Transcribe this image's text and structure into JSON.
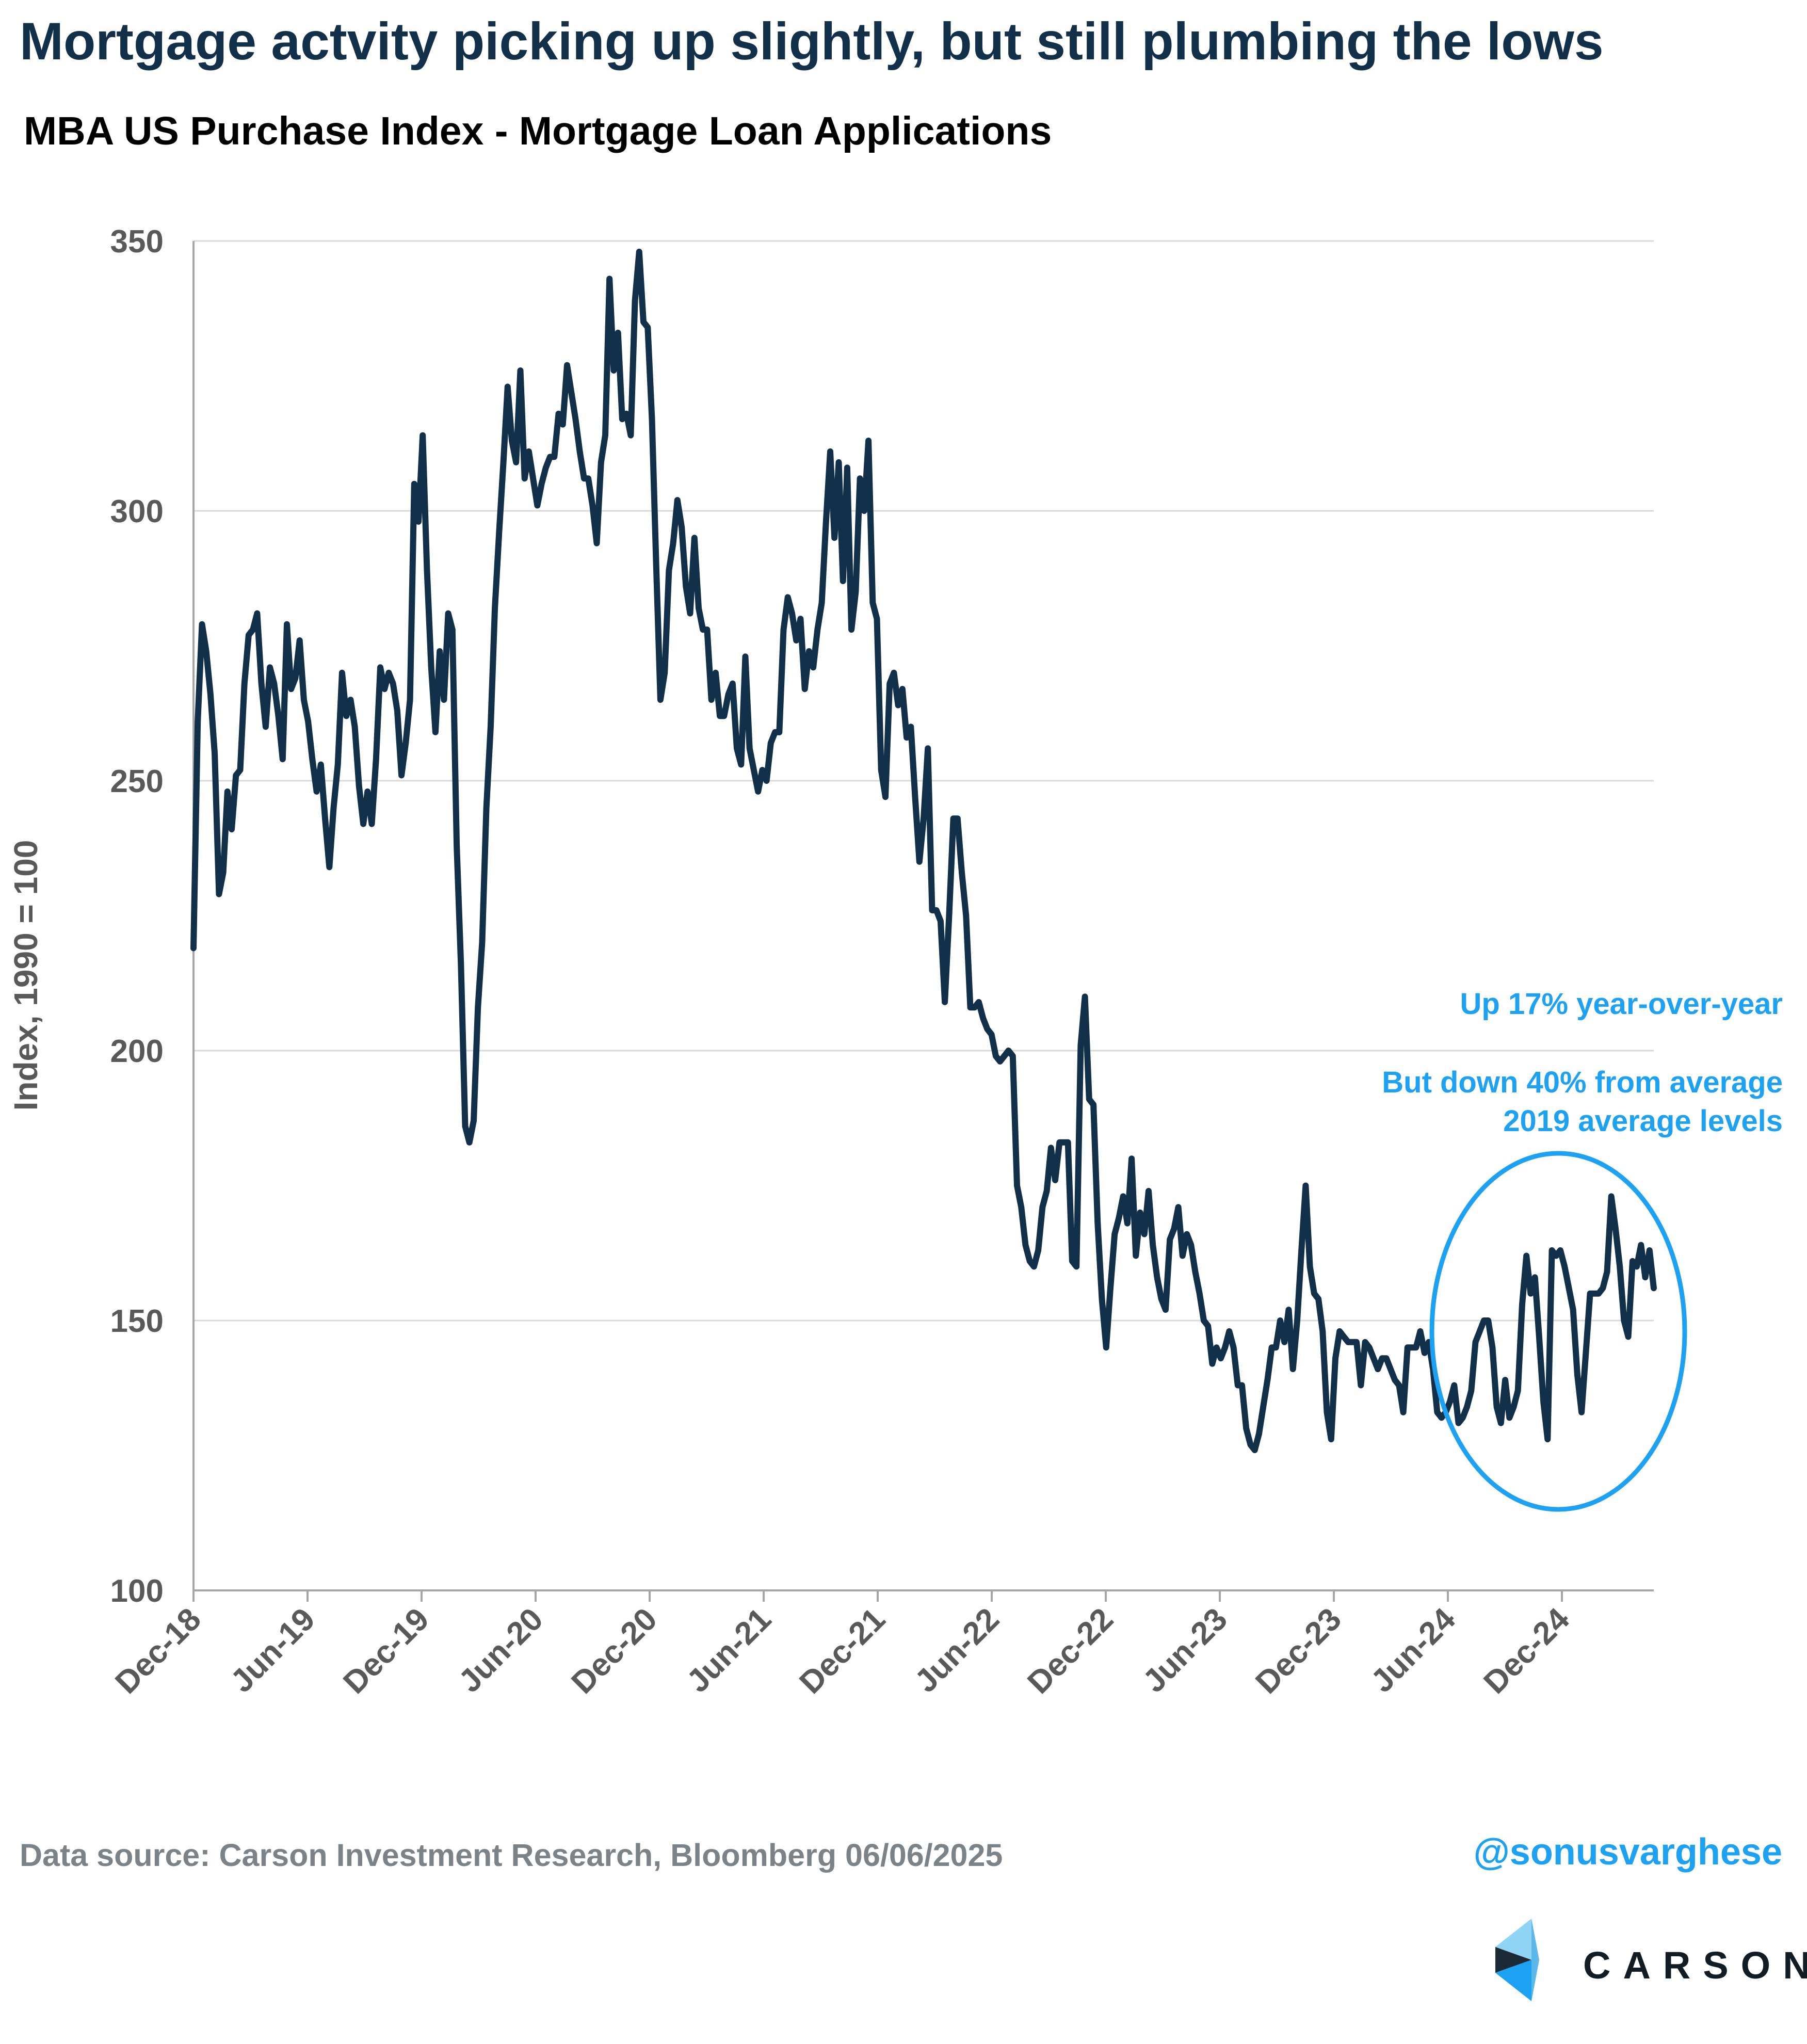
{
  "header": {
    "title": "Mortgage actvity picking up slightly, but still plumbing the lows",
    "subtitle": "MBA US Purchase Index - Mortgage Loan Applications"
  },
  "footer": {
    "source": "Data source: Carson Investment Research, Bloomberg   06/06/2025",
    "handle": "@sonusvarghese",
    "brand": "CARSON"
  },
  "chart_data": {
    "type": "line",
    "title": "MBA US Purchase Index - Mortgage Loan Applications",
    "ylabel": "Index, 1990 = 100",
    "xlabel": "",
    "ylim": [
      100,
      350
    ],
    "yticks": [
      350,
      300,
      250,
      200,
      150,
      100
    ],
    "x_tick_labels": [
      "Dec-18",
      "Jun-19",
      "Dec-19",
      "Jun-20",
      "Dec-20",
      "Jun-21",
      "Dec-21",
      "Jun-22",
      "Dec-22",
      "Jun-23",
      "Dec-23",
      "Jun-24",
      "Dec-24"
    ],
    "x_frequency": "weekly",
    "x_range": [
      "Dec-18",
      "Jun-25"
    ],
    "grid": "horizontal",
    "legend": "none",
    "line_color": "#13304a",
    "annotation_color": "#1da1f2",
    "annotations": [
      {
        "text": "Up 17% year-over-year"
      },
      {
        "text": "But down 40% from average"
      },
      {
        "text": "2019 average levels"
      }
    ],
    "highlight": {
      "shape": "ellipse",
      "x_range": [
        "Jun-24",
        "Jun-25"
      ],
      "y_range": [
        115,
        180
      ]
    },
    "series": [
      {
        "values": [
          219,
          261,
          279,
          274,
          266,
          255,
          229,
          233,
          248,
          241,
          251,
          252,
          268,
          277,
          278,
          281,
          268,
          260,
          271,
          268,
          262,
          254,
          279,
          267,
          269,
          276,
          265,
          261,
          254,
          248,
          253,
          243,
          234,
          245,
          253,
          270,
          262,
          265,
          260,
          249,
          242,
          248,
          242,
          254,
          271,
          267,
          270,
          268,
          263,
          251,
          257,
          265,
          305,
          298,
          314,
          289,
          271,
          259,
          274,
          265,
          281,
          278,
          238,
          216,
          186,
          183,
          187,
          208,
          220,
          245,
          260,
          282,
          296,
          309,
          323,
          313,
          309,
          326,
          306,
          311,
          306,
          301,
          305,
          308,
          310,
          310,
          318,
          316,
          327,
          322,
          317,
          311,
          306,
          306,
          301,
          294,
          309,
          314,
          343,
          326,
          333,
          317,
          318,
          314,
          339,
          348,
          335,
          334,
          317,
          290,
          265,
          270,
          289,
          294,
          302,
          297,
          286,
          281,
          295,
          282,
          278,
          278,
          265,
          270,
          262,
          262,
          266,
          268,
          256,
          253,
          273,
          256,
          252,
          248,
          252,
          250,
          257,
          259,
          259,
          278,
          284,
          281,
          276,
          280,
          267,
          274,
          271,
          278,
          283,
          298,
          311,
          295,
          309,
          287,
          308,
          278,
          285,
          306,
          300,
          313,
          283,
          280,
          252,
          247,
          268,
          270,
          264,
          267,
          258,
          260,
          247,
          235,
          243,
          256,
          226,
          226,
          224,
          209,
          225,
          243,
          243,
          233,
          225,
          208,
          208,
          209,
          206,
          204,
          203,
          199,
          198,
          199,
          200,
          199,
          175,
          171,
          164,
          161,
          160,
          163,
          171,
          174,
          182,
          176,
          183,
          183,
          183,
          161,
          160,
          201,
          210,
          191,
          190,
          168,
          154,
          145,
          156,
          166,
          169,
          173,
          168,
          180,
          162,
          170,
          166,
          174,
          164,
          158,
          154,
          152,
          165,
          167,
          171,
          162,
          166,
          164,
          159,
          155,
          150,
          149,
          142,
          145,
          143,
          145,
          148,
          145,
          138,
          138,
          130,
          127,
          126,
          129,
          134,
          139,
          145,
          145,
          150,
          146,
          152,
          141,
          150,
          163,
          175,
          160,
          155,
          154,
          148,
          133,
          128,
          143,
          148,
          147,
          146,
          146,
          146,
          138,
          146,
          145,
          143,
          141,
          143,
          143,
          141,
          139,
          138,
          133,
          145,
          145,
          145,
          148,
          144,
          146,
          141,
          133,
          132,
          133,
          135,
          138,
          131,
          132,
          134,
          137,
          146,
          148,
          150,
          150,
          145,
          134,
          131,
          139,
          132,
          134,
          137,
          153,
          162,
          155,
          158,
          147,
          135,
          128,
          163,
          162,
          163,
          160,
          156,
          152,
          140,
          133,
          144,
          155,
          155,
          155,
          156,
          159,
          173,
          167,
          160,
          150,
          147,
          161,
          160,
          164,
          158,
          163,
          156
        ]
      }
    ]
  }
}
